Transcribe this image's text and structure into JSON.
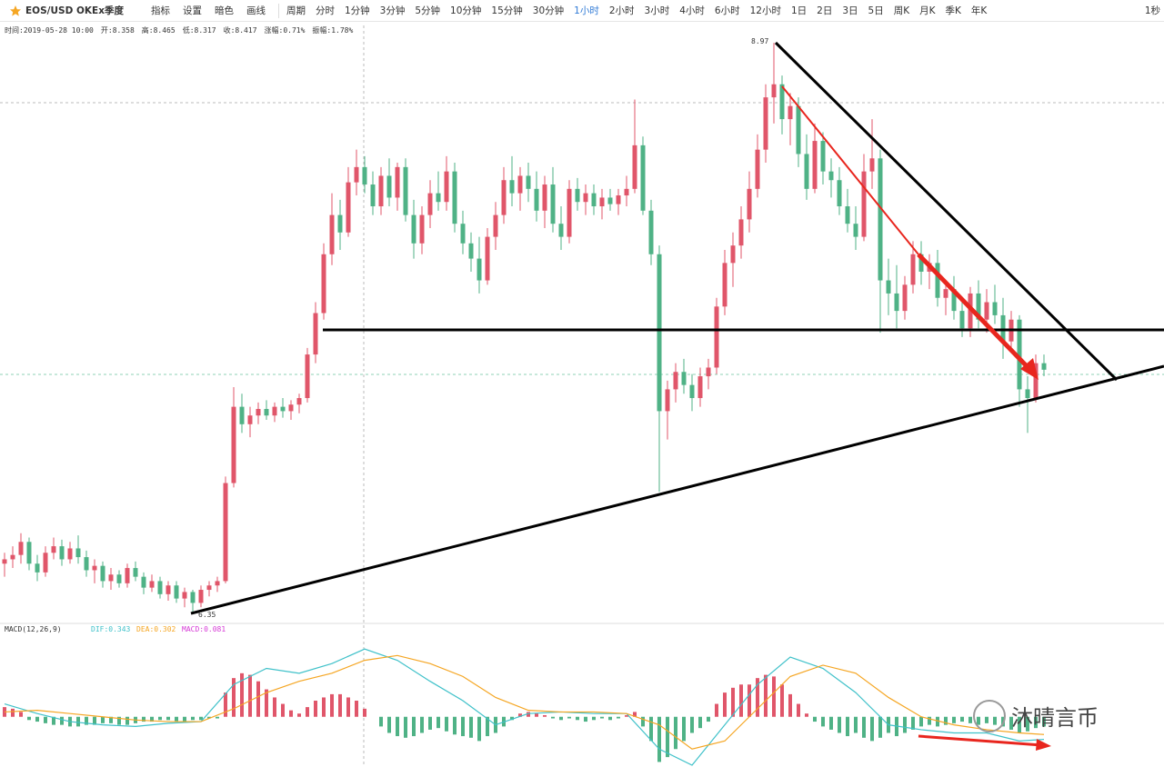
{
  "toolbar": {
    "symbol": "EOS/USD OKEx季度",
    "buttons": [
      "指标",
      "设置",
      "暗色",
      "画线"
    ],
    "periods": [
      "周期",
      "分时",
      "1分钟",
      "3分钟",
      "5分钟",
      "10分钟",
      "15分钟",
      "30分钟",
      "1小时",
      "2小时",
      "3小时",
      "4小时",
      "6小时",
      "12小时",
      "1日",
      "2日",
      "3日",
      "5日",
      "周K",
      "月K",
      "季K",
      "年K"
    ],
    "active": 8,
    "right": "1秒"
  },
  "info": [
    "时间:2019-05-28 10:00",
    "开:8.358",
    "高:8.465",
    "低:8.317",
    "收:8.417",
    "涨幅:0.71%",
    "振幅:1.78%"
  ],
  "watermark": "沐晴言币",
  "chart_data": [
    {
      "type": "candlestick",
      "up_color": "#e0566a",
      "down_color": "#4fb286",
      "ylim": [
        6.31,
        9.05
      ],
      "high_label": "8.97",
      "low_label": "6.35",
      "candles": [
        [
          6.58,
          6.63,
          6.52,
          6.6
        ],
        [
          6.6,
          6.66,
          6.56,
          6.62
        ],
        [
          6.62,
          6.72,
          6.58,
          6.68
        ],
        [
          6.68,
          6.7,
          6.55,
          6.58
        ],
        [
          6.58,
          6.62,
          6.5,
          6.54
        ],
        [
          6.54,
          6.66,
          6.52,
          6.63
        ],
        [
          6.63,
          6.7,
          6.6,
          6.66
        ],
        [
          6.66,
          6.69,
          6.57,
          6.6
        ],
        [
          6.6,
          6.68,
          6.58,
          6.65
        ],
        [
          6.65,
          6.71,
          6.58,
          6.61
        ],
        [
          6.61,
          6.64,
          6.52,
          6.55
        ],
        [
          6.55,
          6.6,
          6.49,
          6.57
        ],
        [
          6.57,
          6.59,
          6.47,
          6.5
        ],
        [
          6.5,
          6.56,
          6.46,
          6.53
        ],
        [
          6.53,
          6.55,
          6.47,
          6.49
        ],
        [
          6.49,
          6.58,
          6.47,
          6.56
        ],
        [
          6.56,
          6.59,
          6.5,
          6.52
        ],
        [
          6.52,
          6.54,
          6.44,
          6.47
        ],
        [
          6.47,
          6.53,
          6.45,
          6.5
        ],
        [
          6.5,
          6.52,
          6.42,
          6.44
        ],
        [
          6.44,
          6.5,
          6.41,
          6.48
        ],
        [
          6.48,
          6.5,
          6.4,
          6.42
        ],
        [
          6.42,
          6.47,
          6.38,
          6.45
        ],
        [
          6.45,
          6.46,
          6.35,
          6.4
        ],
        [
          6.4,
          6.48,
          6.38,
          6.46
        ],
        [
          6.46,
          6.5,
          6.43,
          6.48
        ],
        [
          6.48,
          6.52,
          6.45,
          6.5
        ],
        [
          6.5,
          6.98,
          6.49,
          6.95
        ],
        [
          6.95,
          7.39,
          6.93,
          7.3
        ],
        [
          7.3,
          7.36,
          7.18,
          7.22
        ],
        [
          7.22,
          7.3,
          7.16,
          7.26
        ],
        [
          7.26,
          7.32,
          7.22,
          7.29
        ],
        [
          7.29,
          7.33,
          7.24,
          7.26
        ],
        [
          7.26,
          7.32,
          7.23,
          7.3
        ],
        [
          7.3,
          7.34,
          7.25,
          7.28
        ],
        [
          7.28,
          7.33,
          7.24,
          7.31
        ],
        [
          7.31,
          7.36,
          7.27,
          7.34
        ],
        [
          7.34,
          7.57,
          7.32,
          7.54
        ],
        [
          7.54,
          7.78,
          7.5,
          7.73
        ],
        [
          7.73,
          8.05,
          7.7,
          8.0
        ],
        [
          8.0,
          8.28,
          7.95,
          8.18
        ],
        [
          8.18,
          8.25,
          8.02,
          8.1
        ],
        [
          8.1,
          8.4,
          8.08,
          8.33
        ],
        [
          8.33,
          8.48,
          8.27,
          8.4
        ],
        [
          8.4,
          8.45,
          8.28,
          8.32
        ],
        [
          8.32,
          8.38,
          8.18,
          8.22
        ],
        [
          8.22,
          8.4,
          8.18,
          8.36
        ],
        [
          8.36,
          8.44,
          8.22,
          8.26
        ],
        [
          8.26,
          8.42,
          8.2,
          8.4
        ],
        [
          8.4,
          8.44,
          8.15,
          8.18
        ],
        [
          8.18,
          8.25,
          7.98,
          8.05
        ],
        [
          8.05,
          8.22,
          8.0,
          8.18
        ],
        [
          8.18,
          8.34,
          8.12,
          8.28
        ],
        [
          8.28,
          8.38,
          8.2,
          8.24
        ],
        [
          8.24,
          8.45,
          8.2,
          8.38
        ],
        [
          8.38,
          8.42,
          8.1,
          8.14
        ],
        [
          8.14,
          8.2,
          8.0,
          8.05
        ],
        [
          8.05,
          8.1,
          7.92,
          7.98
        ],
        [
          7.98,
          8.08,
          7.82,
          7.88
        ],
        [
          7.88,
          8.12,
          7.86,
          8.08
        ],
        [
          8.08,
          8.24,
          8.02,
          8.18
        ],
        [
          8.18,
          8.4,
          8.14,
          8.34
        ],
        [
          8.34,
          8.45,
          8.22,
          8.28
        ],
        [
          8.28,
          8.4,
          8.2,
          8.36
        ],
        [
          8.36,
          8.42,
          8.24,
          8.3
        ],
        [
          8.3,
          8.38,
          8.15,
          8.2
        ],
        [
          8.2,
          8.36,
          8.12,
          8.32
        ],
        [
          8.32,
          8.4,
          8.1,
          8.14
        ],
        [
          8.14,
          8.22,
          8.02,
          8.08
        ],
        [
          8.08,
          8.34,
          8.05,
          8.3
        ],
        [
          8.3,
          8.35,
          8.2,
          8.24
        ],
        [
          8.24,
          8.32,
          8.18,
          8.28
        ],
        [
          8.28,
          8.32,
          8.18,
          8.22
        ],
        [
          8.22,
          8.3,
          8.16,
          8.26
        ],
        [
          8.26,
          8.3,
          8.2,
          8.23
        ],
        [
          8.23,
          8.3,
          8.18,
          8.27
        ],
        [
          8.27,
          8.36,
          8.22,
          8.3
        ],
        [
          8.3,
          8.71,
          8.28,
          8.5
        ],
        [
          8.5,
          8.54,
          8.18,
          8.2
        ],
        [
          8.2,
          8.25,
          7.95,
          8.0
        ],
        [
          8.0,
          8.04,
          6.91,
          7.28
        ],
        [
          7.28,
          7.42,
          7.15,
          7.38
        ],
        [
          7.38,
          7.5,
          7.32,
          7.46
        ],
        [
          7.46,
          7.52,
          7.36,
          7.4
        ],
        [
          7.4,
          7.45,
          7.28,
          7.34
        ],
        [
          7.34,
          7.48,
          7.3,
          7.44
        ],
        [
          7.44,
          7.52,
          7.38,
          7.48
        ],
        [
          7.48,
          7.8,
          7.45,
          7.76
        ],
        [
          7.76,
          8.02,
          7.72,
          7.96
        ],
        [
          7.96,
          8.1,
          7.85,
          8.04
        ],
        [
          8.04,
          8.22,
          7.98,
          8.16
        ],
        [
          8.16,
          8.38,
          8.1,
          8.3
        ],
        [
          8.3,
          8.55,
          8.26,
          8.48
        ],
        [
          8.48,
          8.78,
          8.42,
          8.72
        ],
        [
          8.72,
          8.97,
          8.6,
          8.78
        ],
        [
          8.78,
          8.82,
          8.55,
          8.62
        ],
        [
          8.62,
          8.74,
          8.5,
          8.68
        ],
        [
          8.68,
          8.72,
          8.4,
          8.46
        ],
        [
          8.46,
          8.55,
          8.25,
          8.3
        ],
        [
          8.3,
          8.6,
          8.28,
          8.52
        ],
        [
          8.52,
          8.56,
          8.32,
          8.38
        ],
        [
          8.38,
          8.44,
          8.26,
          8.34
        ],
        [
          8.34,
          8.4,
          8.18,
          8.22
        ],
        [
          8.22,
          8.3,
          8.1,
          8.14
        ],
        [
          8.14,
          8.22,
          8.02,
          8.08
        ],
        [
          8.08,
          8.46,
          8.06,
          8.38
        ],
        [
          8.38,
          8.62,
          8.3,
          8.44
        ],
        [
          8.44,
          8.48,
          7.64,
          7.88
        ],
        [
          7.88,
          7.98,
          7.72,
          7.82
        ],
        [
          7.82,
          7.95,
          7.66,
          7.74
        ],
        [
          7.74,
          7.9,
          7.7,
          7.86
        ],
        [
          7.86,
          8.06,
          7.82,
          8.0
        ],
        [
          8.0,
          8.06,
          7.86,
          7.92
        ],
        [
          7.92,
          8.0,
          7.84,
          7.96
        ],
        [
          7.96,
          8.02,
          7.76,
          7.8
        ],
        [
          7.8,
          7.88,
          7.72,
          7.84
        ],
        [
          7.84,
          7.9,
          7.7,
          7.74
        ],
        [
          7.74,
          7.8,
          7.62,
          7.66
        ],
        [
          7.66,
          7.85,
          7.62,
          7.82
        ],
        [
          7.82,
          7.88,
          7.66,
          7.7
        ],
        [
          7.7,
          7.84,
          7.64,
          7.78
        ],
        [
          7.78,
          7.86,
          7.68,
          7.72
        ],
        [
          7.72,
          7.8,
          7.52,
          7.6
        ],
        [
          7.6,
          7.74,
          7.56,
          7.7
        ],
        [
          7.7,
          7.72,
          7.3,
          7.38
        ],
        [
          7.38,
          7.44,
          7.18,
          7.34
        ],
        [
          7.34,
          7.54,
          7.32,
          7.5
        ],
        [
          7.5,
          7.54,
          7.44,
          7.47
        ]
      ]
    },
    {
      "type": "macd",
      "title": "MACD(12,26,9)",
      "labels": [
        {
          "text": "DIF:0.343",
          "color": "#3fc1c9"
        },
        {
          "text": "DEA:0.302",
          "color": "#f5a623"
        },
        {
          "text": "MACD:0.081",
          "color": "#d63ad6"
        }
      ],
      "ylim": [
        -0.3,
        0.5
      ],
      "up_color": "#e0566a",
      "down_color": "#4fb286",
      "histogram": [
        0.06,
        0.05,
        0.03,
        -0.02,
        -0.03,
        -0.04,
        -0.05,
        -0.05,
        -0.06,
        -0.06,
        -0.05,
        -0.05,
        -0.04,
        -0.04,
        -0.05,
        -0.05,
        -0.04,
        -0.03,
        -0.03,
        -0.02,
        -0.02,
        -0.03,
        -0.03,
        -0.02,
        -0.02,
        -0.01,
        -0.01,
        0.15,
        0.24,
        0.27,
        0.26,
        0.22,
        0.17,
        0.12,
        0.08,
        0.04,
        0.02,
        0.06,
        0.1,
        0.12,
        0.14,
        0.14,
        0.12,
        0.1,
        0.05,
        0,
        -0.06,
        -0.1,
        -0.12,
        -0.13,
        -0.12,
        -0.1,
        -0.08,
        -0.07,
        -0.09,
        -0.11,
        -0.12,
        -0.13,
        -0.15,
        -0.12,
        -0.1,
        -0.06,
        -0.02,
        0.02,
        0.03,
        0.02,
        0.01,
        -0.01,
        -0.02,
        -0.01,
        -0.02,
        -0.03,
        -0.02,
        -0.01,
        -0.02,
        -0.01,
        0.01,
        0.03,
        -0.06,
        -0.15,
        -0.28,
        -0.25,
        -0.2,
        -0.15,
        -0.1,
        -0.07,
        -0.03,
        0.08,
        0.15,
        0.18,
        0.2,
        0.2,
        0.24,
        0.26,
        0.25,
        0.2,
        0.14,
        0.08,
        0.02,
        -0.03,
        -0.06,
        -0.08,
        -0.1,
        -0.12,
        -0.1,
        -0.13,
        -0.15,
        -0.13,
        -0.1,
        -0.12,
        -0.1,
        -0.08,
        -0.06,
        -0.05,
        -0.06,
        -0.05,
        -0.04,
        -0.03,
        -0.04,
        -0.05,
        -0.04,
        -0.05,
        -0.06,
        -0.08,
        -0.1,
        -0.09,
        -0.07,
        -0.06
      ],
      "x": [
        0,
        4,
        8,
        12,
        16,
        20,
        24,
        28,
        32,
        36,
        40,
        44,
        48,
        52,
        56,
        60,
        64,
        68,
        72,
        76,
        80,
        84,
        88,
        92,
        96,
        100,
        104,
        108,
        112,
        116,
        120,
        124,
        127
      ],
      "series": [
        {
          "color": "#3fc1c9",
          "values": [
            0.08,
            0.02,
            -0.03,
            -0.05,
            -0.06,
            -0.04,
            -0.03,
            0.2,
            0.3,
            0.27,
            0.33,
            0.42,
            0.35,
            0.22,
            0.1,
            -0.05,
            0.02,
            0.03,
            0.02,
            0.02,
            -0.2,
            -0.3,
            -0.05,
            0.2,
            0.37,
            0.3,
            0.15,
            -0.05,
            -0.08,
            -0.1,
            -0.1,
            -0.15,
            -0.14
          ]
        },
        {
          "color": "#f5a623",
          "values": [
            0.03,
            0.04,
            0.02,
            0,
            -0.02,
            -0.03,
            -0.03,
            0.05,
            0.15,
            0.22,
            0.27,
            0.35,
            0.38,
            0.33,
            0.25,
            0.12,
            0.04,
            0.03,
            0.03,
            0.02,
            -0.05,
            -0.2,
            -0.15,
            0.05,
            0.25,
            0.32,
            0.27,
            0.12,
            0,
            -0.05,
            -0.08,
            -0.1,
            -0.11
          ]
        }
      ]
    }
  ]
}
